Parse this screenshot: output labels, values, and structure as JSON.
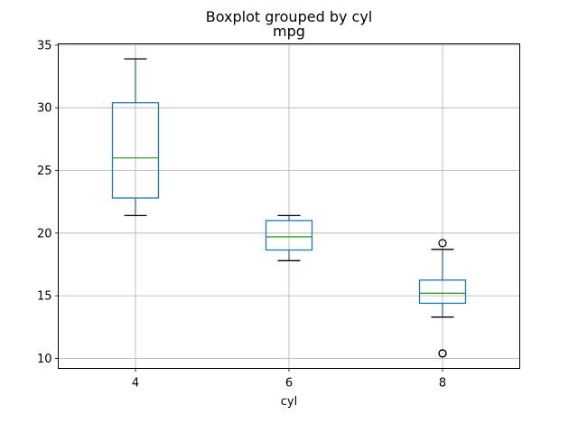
{
  "chart_data": {
    "type": "boxplot",
    "suptitle": "Boxplot grouped by cyl",
    "title": "mpg",
    "xlabel": "cyl",
    "ylabel": "",
    "categories": [
      "4",
      "6",
      "8"
    ],
    "ylim": [
      9.2,
      35.1
    ],
    "yticks": [
      10,
      15,
      20,
      25,
      30,
      35
    ],
    "grid": true,
    "boxes": [
      {
        "category": "4",
        "whisker_low": 21.4,
        "q1": 22.8,
        "median": 26.0,
        "q3": 30.4,
        "whisker_high": 33.9,
        "outliers": []
      },
      {
        "category": "6",
        "whisker_low": 17.8,
        "q1": 18.65,
        "median": 19.7,
        "q3": 21.0,
        "whisker_high": 21.4,
        "outliers": []
      },
      {
        "category": "8",
        "whisker_low": 13.3,
        "q1": 14.4,
        "median": 15.2,
        "q3": 16.25,
        "whisker_high": 18.7,
        "outliers": [
          10.4,
          10.4,
          19.2
        ]
      }
    ],
    "colors": {
      "box": "#1f77b4",
      "median": "#2ca02c",
      "grid": "#b0b0b0",
      "whisker_cap": "#000000",
      "outlier": "#000000"
    }
  }
}
